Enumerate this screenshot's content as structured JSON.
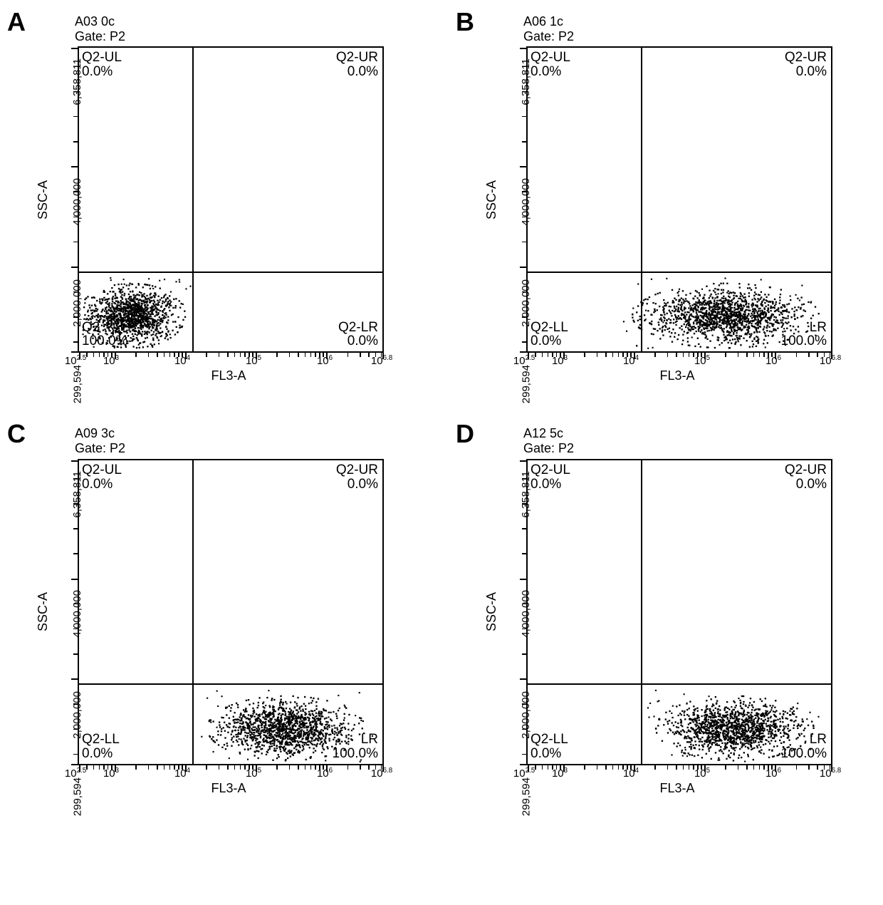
{
  "figure": {
    "background_color": "#ffffff",
    "text_color": "#000000",
    "line_color": "#000000",
    "scatter_color": "#000000",
    "panel_letter_fontsize": 36,
    "header_fontsize": 18,
    "axis_label_fontsize": 18,
    "tick_fontsize": 15,
    "quadrant_label_fontsize": 19,
    "panels": [
      {
        "letter": "A",
        "header_line1": "A03 0c",
        "header_line2": "Gate: P2",
        "scatter": {
          "cx_pct": 17,
          "cy_pct": 88,
          "rx_pct": 15,
          "ry_pct": 9,
          "n_points": 1200
        },
        "quadrants": {
          "ul": {
            "label": "Q2-UL",
            "pct": "0.0%"
          },
          "ur": {
            "label": "Q2-UR",
            "pct": "0.0%"
          },
          "ll": {
            "label": "Q2",
            "pct": "100.0%"
          },
          "lr": {
            "label": "Q2-LR",
            "pct": "0.0%"
          }
        }
      },
      {
        "letter": "B",
        "header_line1": "A06 1c",
        "header_line2": "Gate: P2",
        "scatter": {
          "cx_pct": 65,
          "cy_pct": 88,
          "rx_pct": 26,
          "ry_pct": 9,
          "n_points": 1400
        },
        "quadrants": {
          "ul": {
            "label": "Q2-UL",
            "pct": "0.0%"
          },
          "ur": {
            "label": "Q2-UR",
            "pct": "0.0%"
          },
          "ll": {
            "label": "Q2-LL",
            "pct": "0.0%"
          },
          "lr": {
            "label": "LR",
            "pct": "100.0%"
          }
        }
      },
      {
        "letter": "C",
        "header_line1": "A09 3c",
        "header_line2": "Gate: P2",
        "scatter": {
          "cx_pct": 68,
          "cy_pct": 88,
          "rx_pct": 22,
          "ry_pct": 9,
          "n_points": 1300
        },
        "quadrants": {
          "ul": {
            "label": "Q2-UL",
            "pct": "0.0%"
          },
          "ur": {
            "label": "Q2-UR",
            "pct": "0.0%"
          },
          "ll": {
            "label": "Q2-LL",
            "pct": "0.0%"
          },
          "lr": {
            "label": "LR",
            "pct": "100.0%"
          }
        }
      },
      {
        "letter": "D",
        "header_line1": "A12 5c",
        "header_line2": "Gate: P2",
        "scatter": {
          "cx_pct": 68,
          "cy_pct": 88,
          "rx_pct": 22,
          "ry_pct": 9,
          "n_points": 1300
        },
        "quadrants": {
          "ul": {
            "label": "Q2-UL",
            "pct": "0.0%"
          },
          "ur": {
            "label": "Q2-UR",
            "pct": "0.0%"
          },
          "ll": {
            "label": "Q2-LL",
            "pct": "0.0%"
          },
          "lr": {
            "label": "LR",
            "pct": "100.0%"
          }
        }
      }
    ],
    "xaxis": {
      "label": "FL3-A",
      "scale": "log",
      "range_exp": [
        2.5,
        6.8
      ],
      "ticks": [
        {
          "exp": 2.5,
          "html": "10<sup>2.5</sup>"
        },
        {
          "exp": 3,
          "html": "10<sup>3</sup>"
        },
        {
          "exp": 4,
          "html": "10<sup>4</sup>"
        },
        {
          "exp": 5,
          "html": "10<sup>5</sup>"
        },
        {
          "exp": 6,
          "html": "10<sup>6</sup>"
        },
        {
          "exp": 6.8,
          "html": "10<sup>6.8</sup>"
        }
      ]
    },
    "yaxis": {
      "label": "SSC-A",
      "scale": "linear",
      "range": [
        299594,
        6358811
      ],
      "ticks": [
        {
          "v": 299594,
          "label": "299,594"
        },
        {
          "v": 2000000,
          "label": "2,000,000"
        },
        {
          "v": 4000000,
          "label": "4,000,000"
        },
        {
          "v": 6358811,
          "label": "6,358,811"
        }
      ]
    },
    "quadrant_split": {
      "x_exp": 4.1,
      "y_value": 1900000
    }
  }
}
